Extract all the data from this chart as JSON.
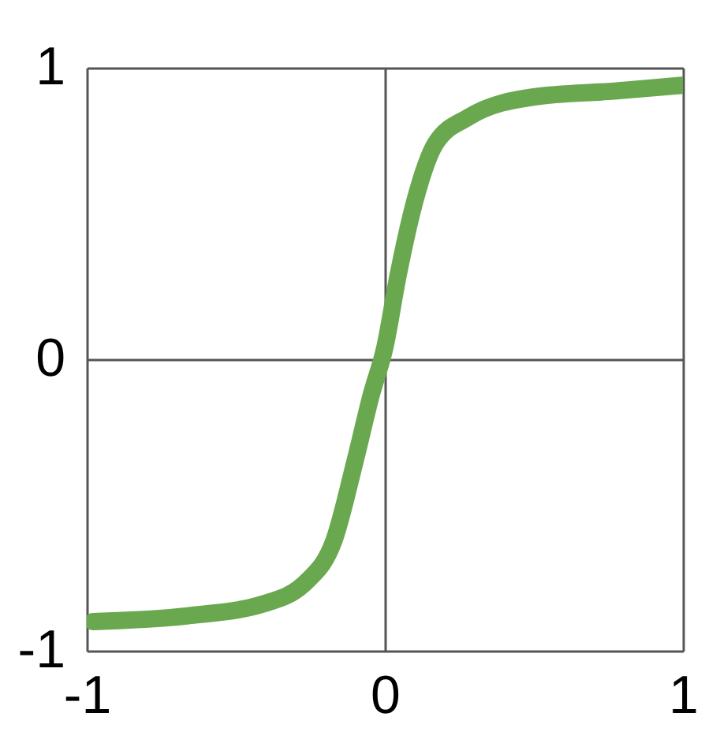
{
  "chart_data": {
    "type": "line",
    "x": [
      -0.98,
      -0.66,
      -0.41,
      -0.26,
      -0.17,
      -0.1,
      -0.045,
      0,
      0.045,
      0.1,
      0.17,
      0.28,
      0.5,
      0.77,
      1.0
    ],
    "series": [
      {
        "color": "#6aa84f",
        "values": [
          -0.9,
          -0.88,
          -0.84,
          -0.76,
          -0.62,
          -0.35,
          -0.12,
          0.04,
          0.29,
          0.54,
          0.74,
          0.83,
          0.9,
          0.92,
          0.94
        ]
      }
    ],
    "xlim": [
      -1,
      1
    ],
    "ylim": [
      -1,
      1
    ],
    "xticks": [
      -1,
      0,
      1
    ],
    "yticks": [
      -1,
      0,
      1
    ],
    "grid": true,
    "line_style": "solid"
  }
}
